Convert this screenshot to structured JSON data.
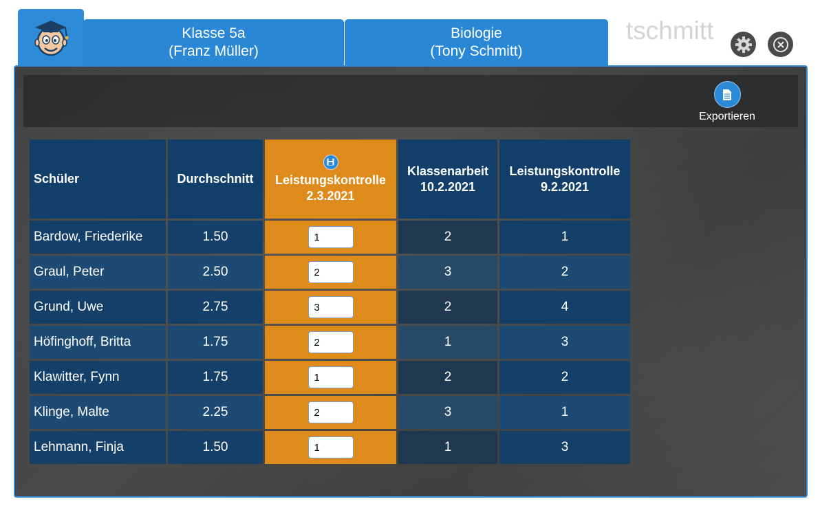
{
  "header": {
    "tabs": [
      {
        "line1": "Klasse 5a",
        "line2": "(Franz Müller)"
      },
      {
        "line1": "Biologie",
        "line2": "(Tony Schmitt)"
      }
    ],
    "username": "tschmitt",
    "icons": {
      "logo": "teacher-mascot-icon",
      "settings": "gear-icon",
      "close": "close-circle-icon"
    }
  },
  "toolbar": {
    "export_label": "Exportieren",
    "export_icon": "document-icon"
  },
  "table": {
    "headers": {
      "student": "Schüler",
      "average": "Durchschnitt",
      "col1_line1": "Leistungskontrolle",
      "col1_line2": "2.3.2021",
      "col2_line1": "Klassenarbeit",
      "col2_line2": "10.2.2021",
      "col3_line1": "Leistungskontrolle",
      "col3_line2": "9.2.2021"
    },
    "rows": [
      {
        "name": "Bardow, Friederike",
        "avg": "1.50",
        "input": "1",
        "g2": "2",
        "g3": "1"
      },
      {
        "name": "Graul, Peter",
        "avg": "2.50",
        "input": "2",
        "g2": "3",
        "g3": "2"
      },
      {
        "name": "Grund, Uwe",
        "avg": "2.75",
        "input": "3",
        "g2": "2",
        "g3": "4"
      },
      {
        "name": "Höfinghoff, Britta",
        "avg": "1.75",
        "input": "2",
        "g2": "1",
        "g3": "3"
      },
      {
        "name": "Klawitter, Fynn",
        "avg": "1.75",
        "input": "1",
        "g2": "2",
        "g3": "2"
      },
      {
        "name": "Klinge, Malte",
        "avg": "2.25",
        "input": "2",
        "g2": "3",
        "g3": "1"
      },
      {
        "name": "Lehmann, Finja",
        "avg": "1.50",
        "input": "1",
        "g2": "1",
        "g3": "3"
      }
    ]
  },
  "colors": {
    "accent": "#2a87d6",
    "active_column": "#df8b1c",
    "header_cell": "#123f6a"
  }
}
